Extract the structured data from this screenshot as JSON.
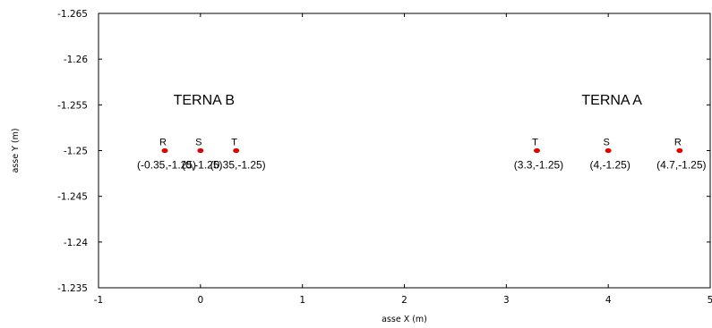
{
  "chart_data": {
    "type": "scatter",
    "title": "",
    "xlabel": "asse X (m)",
    "ylabel": "asse Y (m)",
    "xlim": [
      -1,
      5
    ],
    "ylim": [
      -1.235,
      -1.265
    ],
    "y_axis_inverted": true,
    "x_ticks": [
      "-1",
      "0",
      "1",
      "2",
      "3",
      "4",
      "5"
    ],
    "x_tick_values": [
      -1,
      0,
      1,
      2,
      3,
      4,
      5
    ],
    "y_ticks": [
      "-1.265",
      "-1.26",
      "-1.255",
      "-1.25",
      "-1.245",
      "-1.24",
      "-1.235"
    ],
    "y_tick_values": [
      -1.265,
      -1.26,
      -1.255,
      -1.25,
      -1.245,
      -1.24,
      -1.235
    ],
    "grid": false,
    "marker_color": "#e00000",
    "groups": [
      {
        "label": "TERNA B",
        "anchor": [
          0,
          -1.2555
        ]
      },
      {
        "label": "TERNA A",
        "anchor": [
          4.0,
          -1.2555
        ]
      }
    ],
    "points": [
      {
        "x": -0.35,
        "y": -1.25,
        "phase": "R",
        "coord": "(-0.35,-1.25)"
      },
      {
        "x": 0,
        "y": -1.25,
        "phase": "S",
        "coord": "(0,-1.25)"
      },
      {
        "x": 0.35,
        "y": -1.25,
        "phase": "T",
        "coord": "(0.35,-1.25)"
      },
      {
        "x": 3.3,
        "y": -1.25,
        "phase": "T",
        "coord": "(3.3,-1.25)"
      },
      {
        "x": 4,
        "y": -1.25,
        "phase": "S",
        "coord": "(4,-1.25)"
      },
      {
        "x": 4.7,
        "y": -1.25,
        "phase": "R",
        "coord": "(4.7,-1.25)"
      }
    ]
  }
}
